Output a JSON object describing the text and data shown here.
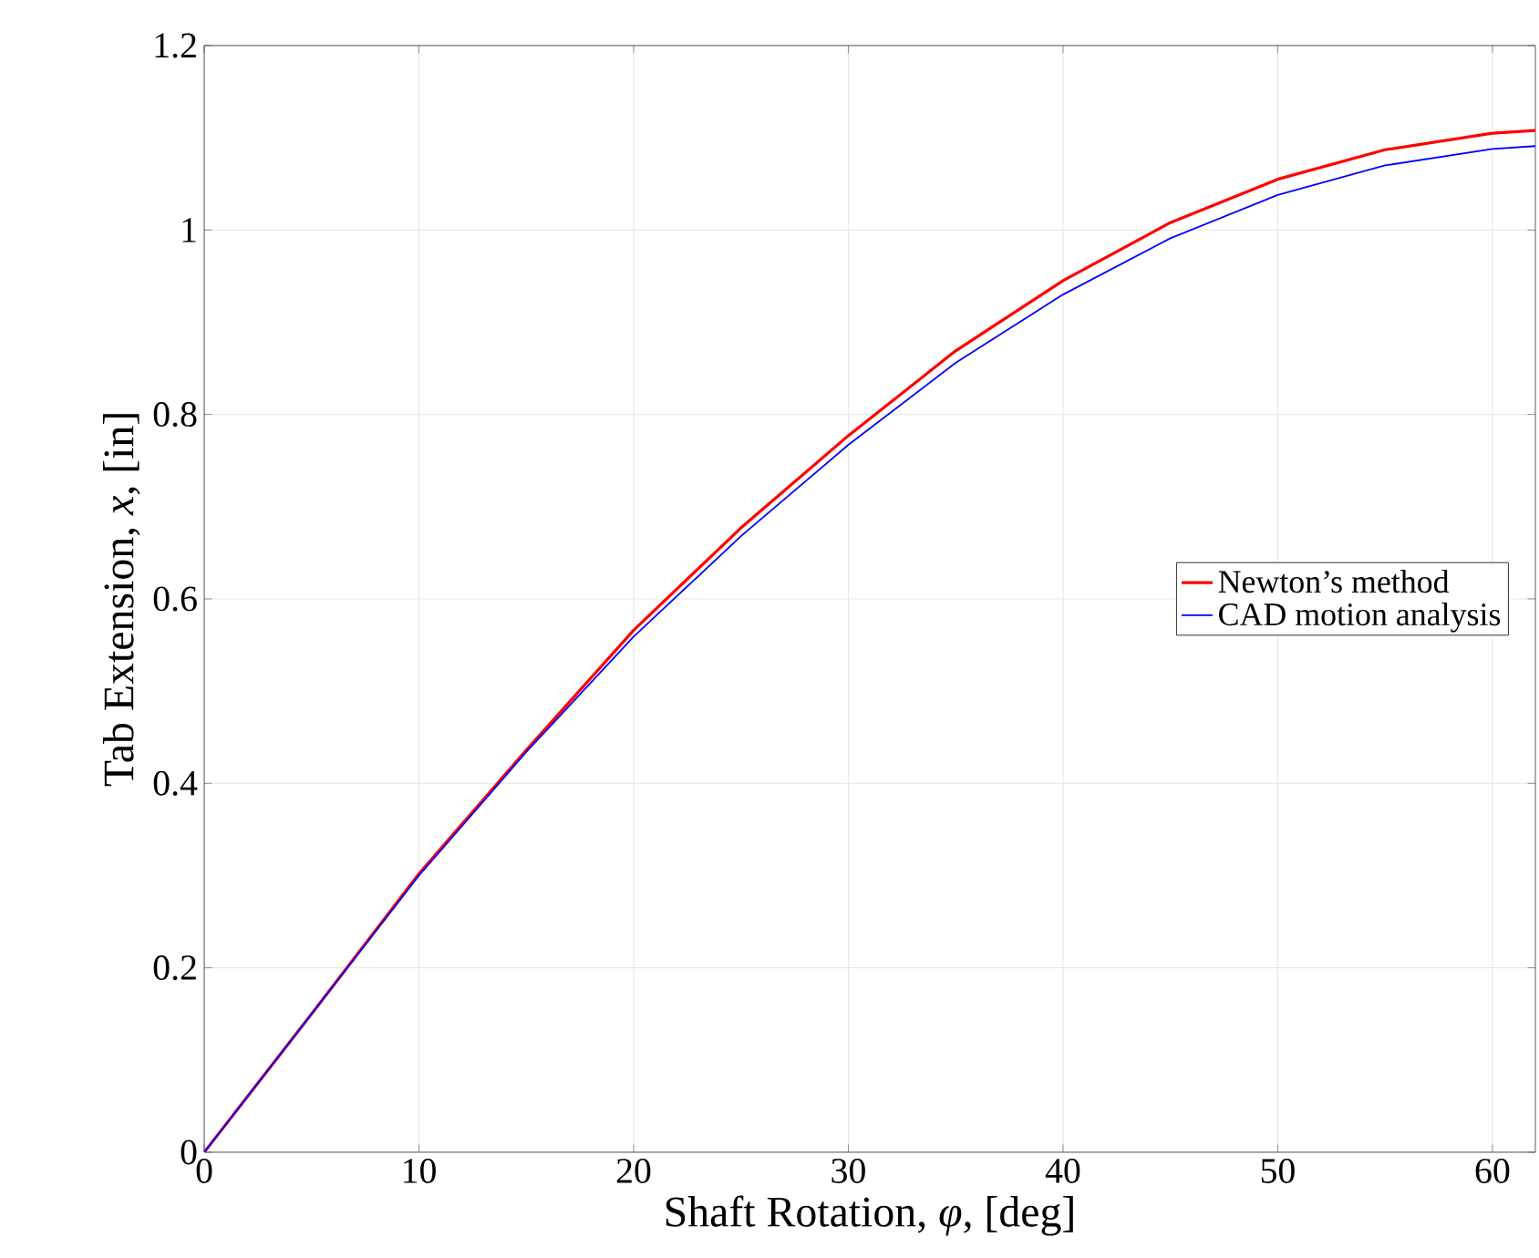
{
  "chart_data": {
    "type": "line",
    "xlabel": "Shaft Rotation, *φ*, [deg]",
    "ylabel": "Tab Extension, *x*, [in]",
    "xlim": [
      0,
      62
    ],
    "ylim": [
      0,
      1.2
    ],
    "xticks": [
      0,
      10,
      20,
      30,
      40,
      50,
      60
    ],
    "yticks": [
      0,
      0.2,
      0.4,
      0.6,
      0.8,
      1,
      1.2
    ],
    "grid": true,
    "legend": "right",
    "line_style": "solid",
    "series": [
      {
        "name": "Newton’s method",
        "color": "#ff0000",
        "x": [
          0,
          5,
          10,
          15,
          20,
          25,
          30,
          35,
          40,
          45,
          50,
          55,
          60,
          62
        ],
        "values": [
          0,
          0.15,
          0.302,
          0.436,
          0.566,
          0.677,
          0.777,
          0.869,
          0.945,
          1.008,
          1.055,
          1.087,
          1.105,
          1.108
        ]
      },
      {
        "name": "CAD motion analysis",
        "color": "#0000ff",
        "x": [
          0,
          5,
          10,
          15,
          20,
          25,
          30,
          35,
          40,
          45,
          50,
          55,
          60,
          62
        ],
        "values": [
          0,
          0.15,
          0.3,
          0.434,
          0.559,
          0.668,
          0.767,
          0.856,
          0.93,
          0.991,
          1.038,
          1.07,
          1.088,
          1.091
        ]
      }
    ]
  }
}
